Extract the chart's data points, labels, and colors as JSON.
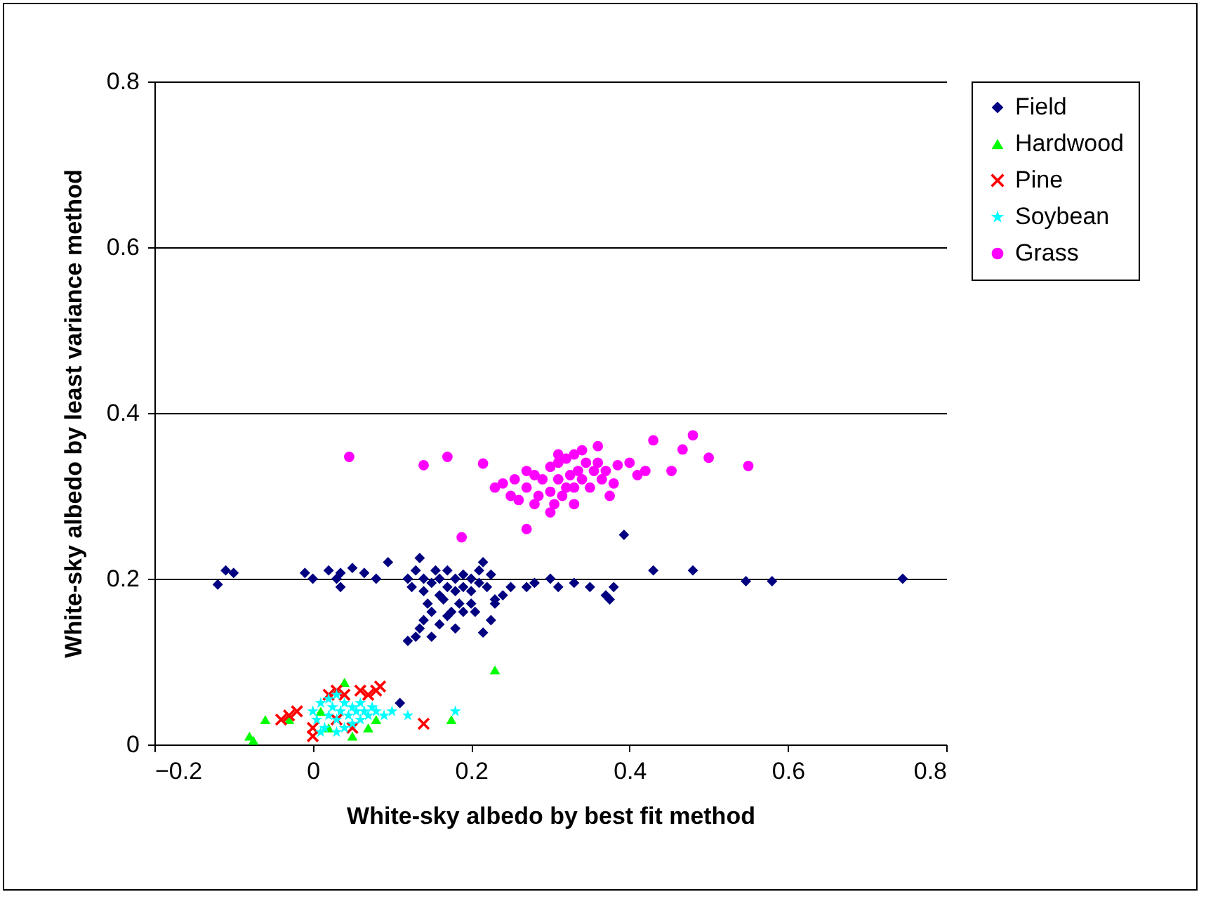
{
  "chart_data": {
    "type": "scatter",
    "xlabel": "White-sky albedo by best fit method",
    "ylabel": "White-sky albedo by least variance method",
    "xlim": [
      -0.2,
      0.8
    ],
    "xticks": [
      -0.2,
      0,
      0.2,
      0.4,
      0.6,
      0.8
    ],
    "ylim": [
      0,
      0.8
    ],
    "yticks": [
      0,
      0.2,
      0.4,
      0.6,
      0.8
    ],
    "grid": "y",
    "legend": "right",
    "series": [
      {
        "name": "Field",
        "color": "#000080",
        "marker": "diamond",
        "x": [
          -0.12,
          -0.11,
          -0.1,
          -0.01,
          0,
          0.02,
          0.03,
          0.035,
          0.035,
          0.05,
          0.065,
          0.08,
          0.095,
          0.11,
          0.12,
          0.125,
          0.13,
          0.135,
          0.14,
          0.14,
          0.145,
          0.15,
          0.15,
          0.155,
          0.16,
          0.16,
          0.165,
          0.17,
          0.17,
          0.175,
          0.18,
          0.18,
          0.185,
          0.19,
          0.19,
          0.2,
          0.2,
          0.205,
          0.21,
          0.21,
          0.215,
          0.22,
          0.225,
          0.23,
          0.24,
          0.13,
          0.135,
          0.14,
          0.15,
          0.16,
          0.17,
          0.18,
          0.19,
          0.2,
          0.215,
          0.225,
          0.23,
          0.25,
          0.27,
          0.28,
          0.3,
          0.31,
          0.33,
          0.35,
          0.37,
          0.375,
          0.38,
          0.393,
          0.43,
          0.48,
          0.547,
          0.58,
          0.745,
          0.12
        ],
        "values": [
          0.193,
          0.21,
          0.207,
          0.207,
          0.2,
          0.21,
          0.2,
          0.207,
          0.19,
          0.213,
          0.207,
          0.2,
          0.22,
          0.05,
          0.2,
          0.19,
          0.21,
          0.225,
          0.185,
          0.2,
          0.17,
          0.16,
          0.195,
          0.21,
          0.18,
          0.2,
          0.175,
          0.19,
          0.21,
          0.16,
          0.185,
          0.2,
          0.17,
          0.205,
          0.19,
          0.2,
          0.185,
          0.16,
          0.21,
          0.195,
          0.22,
          0.19,
          0.205,
          0.17,
          0.18,
          0.13,
          0.14,
          0.15,
          0.13,
          0.145,
          0.155,
          0.14,
          0.16,
          0.17,
          0.135,
          0.15,
          0.175,
          0.19,
          0.19,
          0.195,
          0.2,
          0.19,
          0.195,
          0.19,
          0.18,
          0.175,
          0.19,
          0.253,
          0.21,
          0.21,
          0.197,
          0.197,
          0.2,
          0.125
        ]
      },
      {
        "name": "Hardwood",
        "color": "#00ff00",
        "marker": "triangle",
        "x": [
          -0.08,
          -0.075,
          -0.06,
          -0.03,
          0.02,
          0.04,
          0.05,
          0.07,
          0.08,
          0.175,
          0.23,
          0.01
        ],
        "values": [
          0.01,
          0.005,
          0.03,
          0.03,
          0.02,
          0.075,
          0.01,
          0.02,
          0.03,
          0.03,
          0.09,
          0.04
        ]
      },
      {
        "name": "Pine",
        "color": "#ff0000",
        "marker": "cross",
        "x": [
          -0.04,
          -0.03,
          -0.02,
          0,
          0,
          0.02,
          0.03,
          0.04,
          0.05,
          0.06,
          0.07,
          0.08,
          0.085,
          0.14,
          0.03
        ],
        "values": [
          0.03,
          0.035,
          0.04,
          0.01,
          0.02,
          0.06,
          0.065,
          0.06,
          0.02,
          0.065,
          0.06,
          0.065,
          0.07,
          0.025,
          0.03
        ]
      },
      {
        "name": "Soybean",
        "color": "#00ffff",
        "marker": "star",
        "x": [
          0,
          0.005,
          0.01,
          0.015,
          0.02,
          0.02,
          0.025,
          0.03,
          0.03,
          0.035,
          0.04,
          0.04,
          0.045,
          0.05,
          0.05,
          0.055,
          0.06,
          0.06,
          0.065,
          0.07,
          0.075,
          0.08,
          0.09,
          0.1,
          0.12,
          0.18,
          0.03,
          0.01
        ],
        "values": [
          0.04,
          0.03,
          0.05,
          0.02,
          0.035,
          0.055,
          0.045,
          0.03,
          0.06,
          0.04,
          0.02,
          0.05,
          0.035,
          0.045,
          0.025,
          0.04,
          0.03,
          0.05,
          0.04,
          0.035,
          0.045,
          0.04,
          0.035,
          0.04,
          0.035,
          0.04,
          0.015,
          0.015
        ]
      },
      {
        "name": "Grass",
        "color": "#ff00ff",
        "marker": "circle",
        "x": [
          0.046,
          0.14,
          0.17,
          0.215,
          0.188,
          0.27,
          0.43,
          0.48,
          0.5,
          0.55,
          0.467,
          0.453,
          0.385,
          0.23,
          0.24,
          0.255,
          0.26,
          0.27,
          0.28,
          0.28,
          0.285,
          0.3,
          0.3,
          0.305,
          0.31,
          0.31,
          0.315,
          0.32,
          0.32,
          0.325,
          0.33,
          0.33,
          0.335,
          0.34,
          0.34,
          0.345,
          0.35,
          0.355,
          0.36,
          0.365,
          0.37,
          0.375,
          0.38,
          0.4,
          0.41,
          0.42,
          0.3,
          0.29,
          0.25,
          0.36,
          0.31,
          0.33,
          0.27
        ],
        "values": [
          0.347,
          0.337,
          0.347,
          0.339,
          0.25,
          0.26,
          0.367,
          0.373,
          0.346,
          0.336,
          0.356,
          0.33,
          0.337,
          0.31,
          0.315,
          0.32,
          0.295,
          0.31,
          0.29,
          0.325,
          0.3,
          0.305,
          0.335,
          0.29,
          0.32,
          0.34,
          0.3,
          0.31,
          0.345,
          0.325,
          0.31,
          0.35,
          0.33,
          0.32,
          0.355,
          0.34,
          0.31,
          0.33,
          0.34,
          0.32,
          0.33,
          0.3,
          0.315,
          0.34,
          0.325,
          0.33,
          0.28,
          0.32,
          0.3,
          0.36,
          0.35,
          0.29,
          0.33
        ]
      }
    ]
  }
}
